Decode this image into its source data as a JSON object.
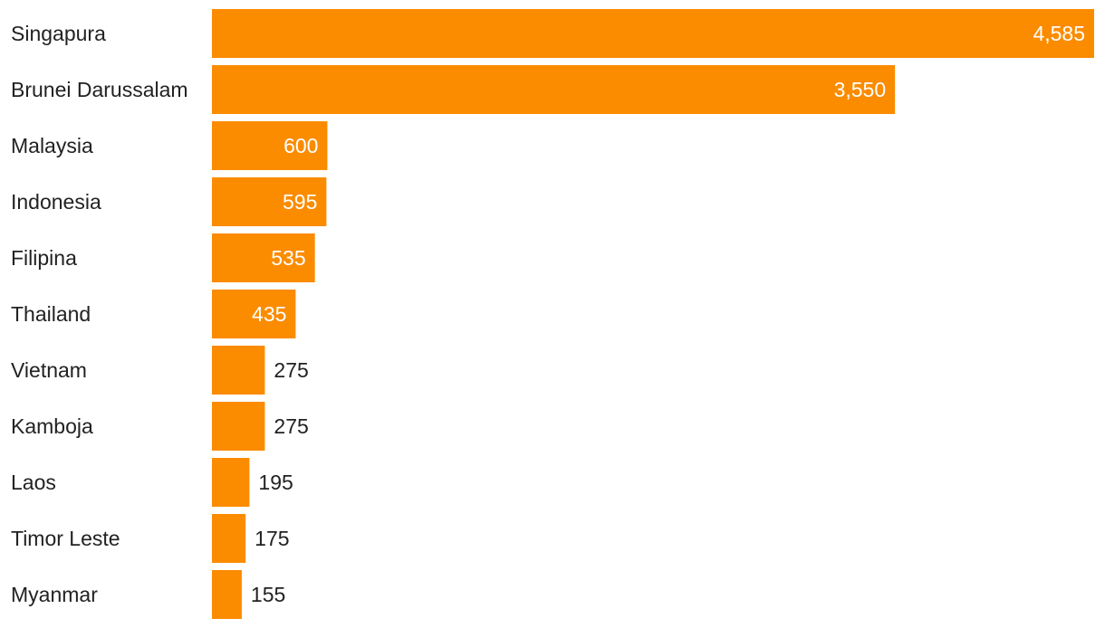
{
  "chart_data": {
    "type": "bar",
    "orientation": "horizontal",
    "categories": [
      "Singapura",
      "Brunei Darussalam",
      "Malaysia",
      "Indonesia",
      "Filipina",
      "Thailand",
      "Vietnam",
      "Kamboja",
      "Laos",
      "Timor Leste",
      "Myanmar"
    ],
    "values": [
      4585,
      3550,
      600,
      595,
      535,
      435,
      275,
      275,
      195,
      175,
      155
    ],
    "value_labels": [
      "4,585",
      "3,550",
      "600",
      "595",
      "535",
      "435",
      "275",
      "275",
      "195",
      "175",
      "155"
    ],
    "bar_color": "#FB8C00",
    "label_inside_color": "#ffffff",
    "label_outside_color": "#222222",
    "xlim": [
      0,
      4585
    ],
    "grid": false,
    "legend": "none"
  }
}
